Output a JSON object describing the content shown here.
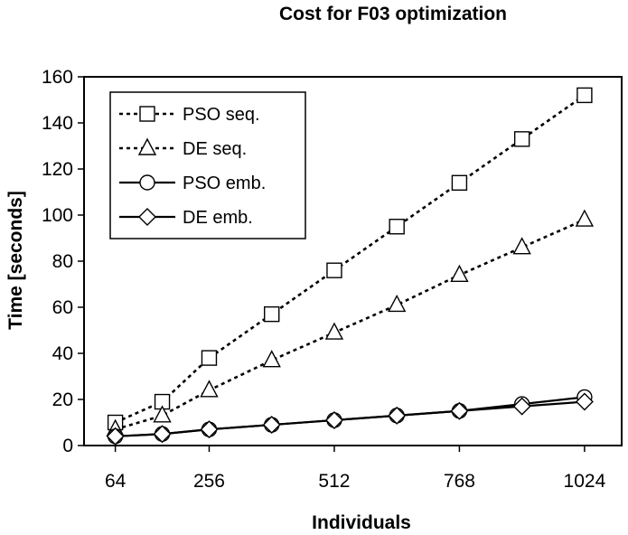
{
  "chart_data": {
    "type": "line",
    "title": "Cost for F03 optimization",
    "xlabel": "Individuals",
    "ylabel": "Time [seconds]",
    "xlim": [
      0,
      1100
    ],
    "ylim": [
      0,
      160
    ],
    "xticks": [
      64,
      256,
      512,
      768,
      1024
    ],
    "yticks": [
      0,
      20,
      40,
      60,
      80,
      100,
      120,
      140,
      160
    ],
    "x": [
      64,
      160,
      256,
      384,
      512,
      640,
      768,
      896,
      1024
    ],
    "legend_position": "top-left",
    "series": [
      {
        "name": "PSO seq.",
        "marker": "square",
        "line": "dotted",
        "values": [
          10,
          19,
          38,
          57,
          76,
          95,
          114,
          133,
          152
        ]
      },
      {
        "name": "DE seq.",
        "marker": "triangle",
        "line": "dotted",
        "values": [
          7,
          13,
          24,
          37,
          49,
          61,
          74,
          86,
          98
        ]
      },
      {
        "name": "PSO emb.",
        "marker": "circle",
        "line": "solid",
        "values": [
          4,
          5,
          7,
          9,
          11,
          13,
          15,
          18,
          21
        ]
      },
      {
        "name": "DE emb.",
        "marker": "diamond",
        "line": "solid",
        "values": [
          4,
          5,
          7,
          9,
          11,
          13,
          15,
          17,
          19
        ]
      }
    ]
  }
}
